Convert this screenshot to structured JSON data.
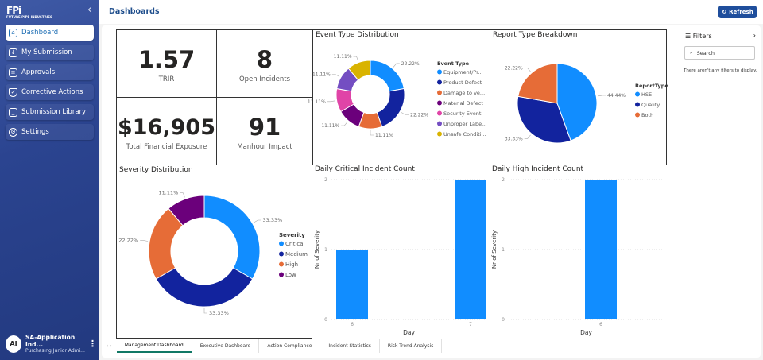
{
  "app": {
    "logo_text": "FPi",
    "logo_sub": "FUTURE PIPE INDUSTRIES"
  },
  "sidebar": {
    "items": [
      {
        "label": "Dashboard",
        "icon": "home-icon",
        "active": true
      },
      {
        "label": "My Submission",
        "icon": "inbox-icon"
      },
      {
        "label": "Approvals",
        "icon": "checklist-icon"
      },
      {
        "label": "Corrective Actions",
        "icon": "shield-check-icon"
      },
      {
        "label": "Submission Library",
        "icon": "archive-icon"
      },
      {
        "label": "Settings",
        "icon": "gear-icon"
      }
    ],
    "user": {
      "initials": "AI",
      "name": "SA-Application Ind...",
      "role": "Purchasing Junior Admi..."
    }
  },
  "header": {
    "title": "Dashboards",
    "refresh_label": "Refresh"
  },
  "kpis": [
    {
      "value": "1.57",
      "label": "TRIR"
    },
    {
      "value": "8",
      "label": "Open Incidents"
    },
    {
      "value": "$16,905",
      "label": "Total Financial Exposure"
    },
    {
      "value": "91",
      "label": "Manhour Impact"
    }
  ],
  "filters": {
    "title": "Filters",
    "search_placeholder": "Search",
    "empty_text": "There aren't any filters to display."
  },
  "tabs": [
    "Management Dashboard",
    "Executive Dashboard",
    "Action Compliance",
    "Incident Statistics",
    "Risk Trend Analysis"
  ],
  "chart_data": [
    {
      "type": "pie",
      "donut": true,
      "title": "Event Type Distribution",
      "legend_title": "Event Type",
      "legend_position": "right",
      "categories": [
        "Equipment/Pr...",
        "Product Defect",
        "Damage to ve...",
        "Material Defect",
        "Security Event",
        "Unproper Labe...",
        "Unsafe Conditi..."
      ],
      "values": [
        22.22,
        22.22,
        11.11,
        11.11,
        11.11,
        11.11,
        11.11
      ],
      "colors": [
        "#118DFF",
        "#12239E",
        "#E66C37",
        "#6B007B",
        "#E044A7",
        "#744EC2",
        "#D9B300"
      ]
    },
    {
      "type": "pie",
      "donut": false,
      "title": "Report Type Breakdown",
      "legend_title": "ReportType",
      "legend_position": "right",
      "categories": [
        "HSE",
        "Quality",
        "Both"
      ],
      "values": [
        44.44,
        33.33,
        22.22
      ],
      "colors": [
        "#118DFF",
        "#12239E",
        "#E66C37"
      ]
    },
    {
      "type": "pie",
      "donut": true,
      "title": "Severity Distribution",
      "legend_title": "Severity",
      "legend_position": "right",
      "categories": [
        "Critical",
        "Medium",
        "High",
        "Low"
      ],
      "values": [
        33.33,
        33.33,
        22.22,
        11.11
      ],
      "colors": [
        "#118DFF",
        "#12239E",
        "#E66C37",
        "#6B007B"
      ]
    },
    {
      "type": "bar",
      "title": "Daily Critical Incident Count",
      "xlabel": "Day",
      "ylabel": "Nr of Severity",
      "categories": [
        "6",
        "7"
      ],
      "values": [
        1,
        2
      ],
      "ylim": [
        0,
        2
      ],
      "yticks": [
        "0",
        "1",
        "2"
      ],
      "color": "#118DFF",
      "grid": true
    },
    {
      "type": "bar",
      "title": "Daily High Incident Count",
      "xlabel": "Day",
      "ylabel": "Nr of Severity",
      "categories": [
        "6"
      ],
      "values": [
        2
      ],
      "ylim": [
        0,
        2
      ],
      "yticks": [
        "0",
        "1",
        "2"
      ],
      "color": "#118DFF",
      "grid": true
    }
  ]
}
